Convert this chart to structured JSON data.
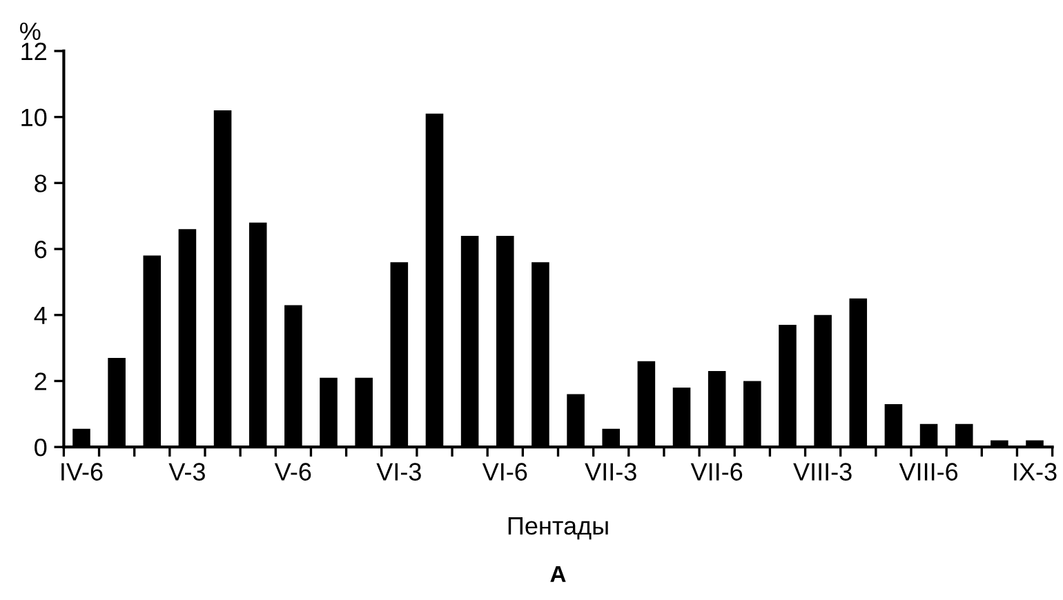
{
  "chart_data": {
    "type": "bar",
    "ylabel": "%",
    "xlabel": "Пентады",
    "annotations": [
      "А"
    ],
    "categories": [
      "IV-6",
      null,
      null,
      "V-3",
      null,
      null,
      "V-6",
      null,
      null,
      "VI-3",
      null,
      null,
      "VI-6",
      null,
      null,
      "VII-3",
      null,
      null,
      "VII-6",
      null,
      null,
      "VIII-3",
      null,
      null,
      "VIII-6",
      null,
      null,
      "IX-3"
    ],
    "values": [
      0.55,
      2.7,
      5.8,
      6.6,
      10.2,
      6.8,
      4.3,
      2.1,
      2.1,
      5.6,
      10.1,
      6.4,
      6.4,
      5.6,
      1.6,
      0.55,
      2.6,
      1.8,
      2.3,
      2.0,
      3.7,
      4.0,
      4.5,
      1.3,
      0.7,
      0.7,
      0.2,
      0.2
    ],
    "color": "#000000",
    "ylim": [
      0,
      12
    ],
    "yticks": [
      0,
      2,
      4,
      6,
      8,
      10,
      12
    ],
    "grid": false,
    "legend": false
  }
}
